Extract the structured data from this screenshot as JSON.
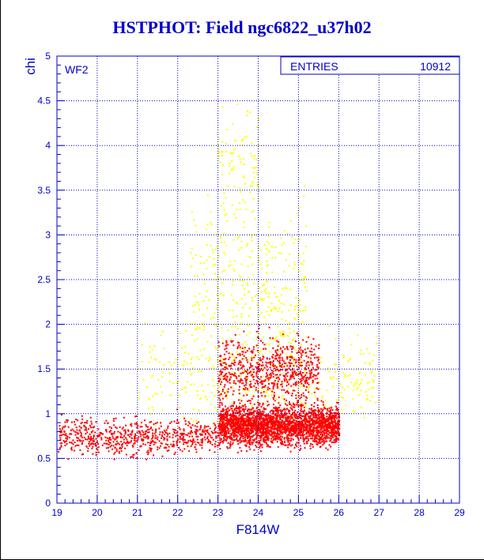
{
  "title": "HSTPHOT: Field ngc6822_u37h02",
  "panel_label": "WF2",
  "stats_box": {
    "label": "ENTRIES",
    "value": "10912"
  },
  "colors": {
    "axis": "#0000cc",
    "grid": "#0000cc",
    "primary_points": "#ff0000",
    "secondary_points": "#ffff00"
  },
  "chart_data": {
    "type": "scatter",
    "title": "HSTPHOT: Field ngc6822_u37h02",
    "xlabel": "F814W",
    "ylabel": "chi",
    "xlim": [
      19,
      29
    ],
    "ylim": [
      0,
      5
    ],
    "xticks": [
      "19",
      "20",
      "21",
      "22",
      "23",
      "24",
      "25",
      "26",
      "27",
      "28",
      "29"
    ],
    "yticks": [
      "0",
      "0.5",
      "1",
      "1.5",
      "2",
      "2.5",
      "3",
      "3.5",
      "4",
      "4.5",
      "5"
    ],
    "grid": true,
    "entries": 10912,
    "series": [
      {
        "color": "#ff0000",
        "marker": "point"
      },
      {
        "color": "#ffff00",
        "marker": "point"
      }
    ],
    "density_regions": [
      {
        "series": 0,
        "x_range": [
          23.0,
          26.0
        ],
        "y_center": 0.88,
        "y_spread": 0.22,
        "relative_density": "very high"
      },
      {
        "series": 0,
        "x_range": [
          19.0,
          23.0
        ],
        "y_center": 0.75,
        "y_spread": 0.2,
        "relative_density": "medium"
      },
      {
        "series": 0,
        "x_range": [
          23.0,
          25.5
        ],
        "y_center": 1.5,
        "y_spread": 0.35,
        "relative_density": "medium"
      },
      {
        "series": 1,
        "x_range": [
          22.3,
          25.2
        ],
        "y_center": 2.4,
        "y_spread": 1.0,
        "relative_density": "low"
      },
      {
        "series": 1,
        "x_range": [
          23.0,
          24.0
        ],
        "y_center": 3.8,
        "y_spread": 0.6,
        "relative_density": "very low"
      },
      {
        "series": 1,
        "x_range": [
          21.0,
          27.0
        ],
        "y_center": 1.4,
        "y_spread": 0.5,
        "relative_density": "low"
      }
    ]
  }
}
